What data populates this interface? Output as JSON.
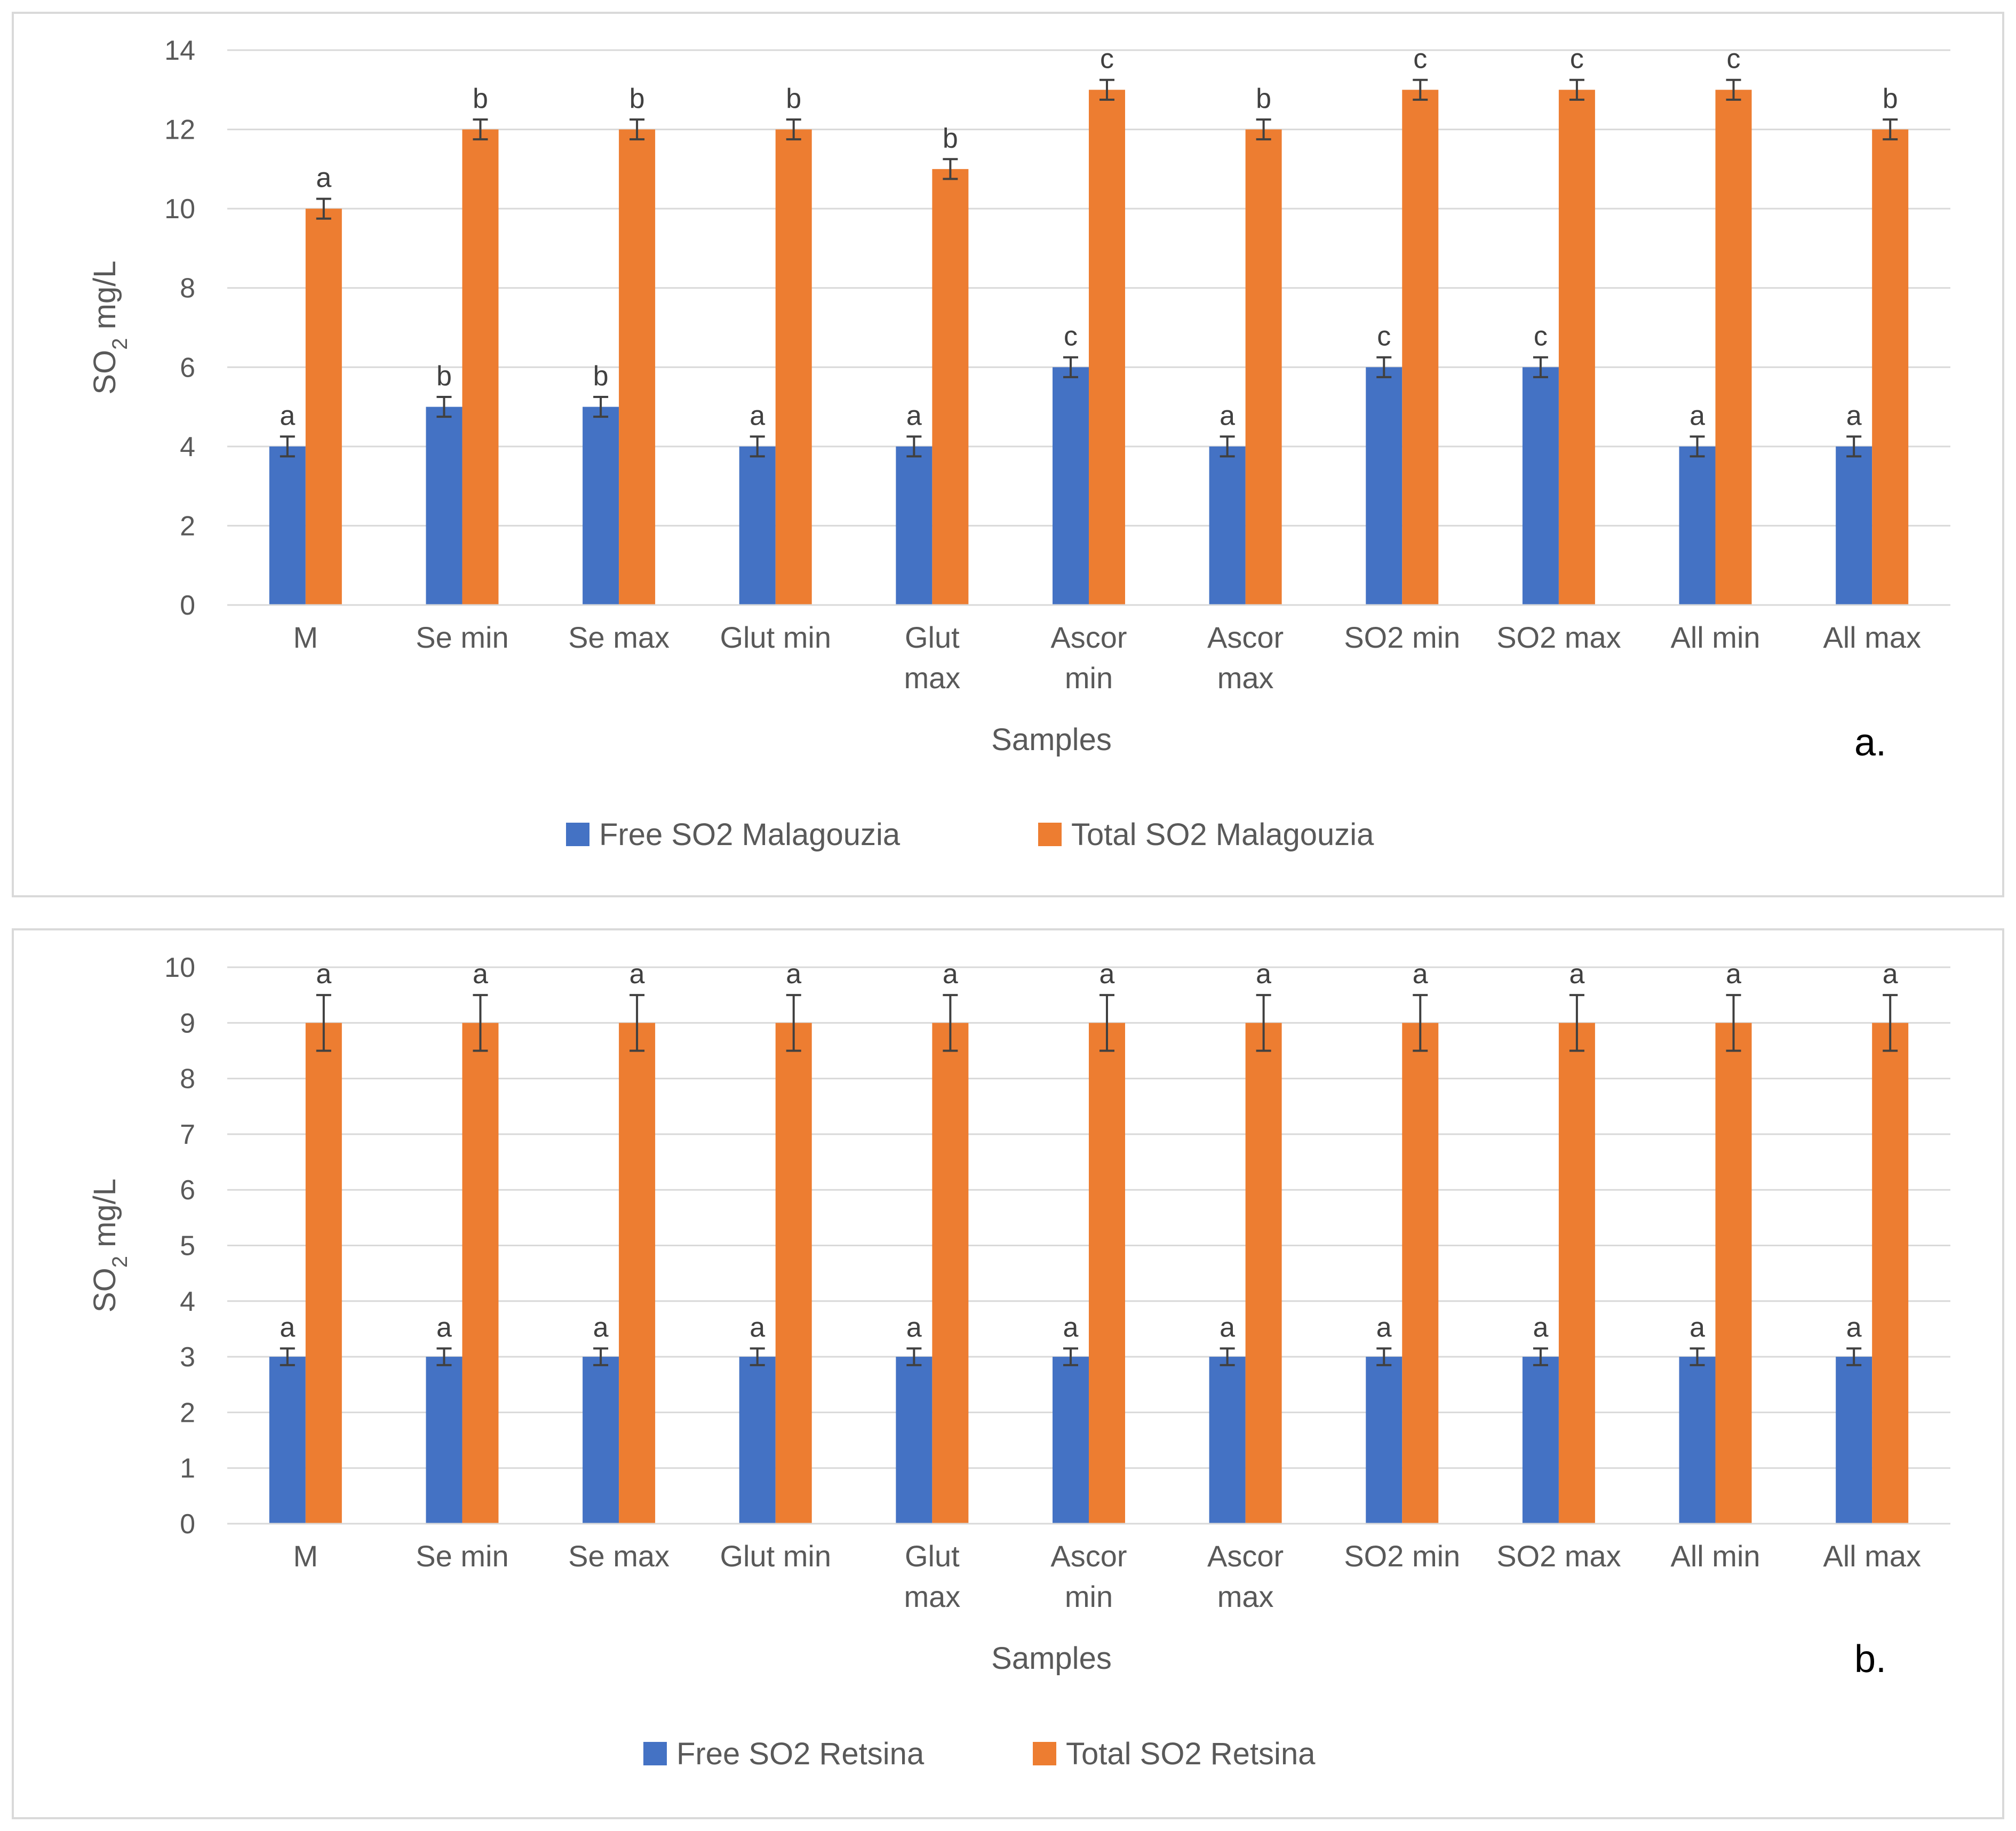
{
  "figure": {
    "colors": {
      "free": "#4472C4",
      "total": "#ED7D31",
      "grid": "#d9d9d9",
      "text": "#595959",
      "errbar": "#404040"
    }
  },
  "chart_data": [
    {
      "type": "bar",
      "panel_label": "a.",
      "xlabel": "Samples",
      "ylabel": "SO2 mg/L",
      "ylabel_main": "SO",
      "ylabel_sub": "2",
      "ylabel_unit": " mg/L",
      "ylim": [
        0,
        14
      ],
      "yticks": [
        0,
        2,
        4,
        6,
        8,
        10,
        12,
        14
      ],
      "grid": true,
      "legend_position": "bottom",
      "categories": [
        [
          "M"
        ],
        [
          "Se min"
        ],
        [
          "Se max"
        ],
        [
          "Glut min"
        ],
        [
          "Glut",
          "max"
        ],
        [
          "Ascor",
          "min"
        ],
        [
          "Ascor",
          "max"
        ],
        [
          "SO2 min"
        ],
        [
          "SO2 max"
        ],
        [
          "All min"
        ],
        [
          "All max"
        ]
      ],
      "series": [
        {
          "name": "Free SO2 Malagouzia",
          "values": [
            4,
            5,
            5,
            4,
            4,
            6,
            4,
            6,
            6,
            4,
            4
          ],
          "error": [
            0.25,
            0.25,
            0.25,
            0.25,
            0.25,
            0.25,
            0.25,
            0.25,
            0.25,
            0.25,
            0.25
          ],
          "labels": [
            "a",
            "b",
            "b",
            "a",
            "a",
            "c",
            "a",
            "c",
            "c",
            "a",
            "a"
          ]
        },
        {
          "name": "Total SO2 Malagouzia",
          "values": [
            10,
            12,
            12,
            12,
            11,
            13,
            12,
            13,
            13,
            13,
            12
          ],
          "error": [
            0.25,
            0.25,
            0.25,
            0.25,
            0.25,
            0.25,
            0.25,
            0.25,
            0.25,
            0.25,
            0.25
          ],
          "labels": [
            "a",
            "b",
            "b",
            "b",
            "b",
            "c",
            "b",
            "c",
            "c",
            "c",
            "b"
          ]
        }
      ]
    },
    {
      "type": "bar",
      "panel_label": "b.",
      "xlabel": "Samples",
      "ylabel": "SO2 mg/L",
      "ylabel_main": "SO",
      "ylabel_sub": "2",
      "ylabel_unit": " mg/L",
      "ylim": [
        0,
        10
      ],
      "yticks": [
        0,
        1,
        2,
        3,
        4,
        5,
        6,
        7,
        8,
        9,
        10
      ],
      "grid": true,
      "legend_position": "bottom",
      "categories": [
        [
          "M"
        ],
        [
          "Se min"
        ],
        [
          "Se max"
        ],
        [
          "Glut min"
        ],
        [
          "Glut",
          "max"
        ],
        [
          "Ascor",
          "min"
        ],
        [
          "Ascor",
          "max"
        ],
        [
          "SO2 min"
        ],
        [
          "SO2 max"
        ],
        [
          "All min"
        ],
        [
          "All max"
        ]
      ],
      "series": [
        {
          "name": "Free SO2 Retsina",
          "values": [
            3,
            3,
            3,
            3,
            3,
            3,
            3,
            3,
            3,
            3,
            3
          ],
          "error": [
            0.15,
            0.15,
            0.15,
            0.15,
            0.15,
            0.15,
            0.15,
            0.15,
            0.15,
            0.15,
            0.15
          ],
          "labels": [
            "a",
            "a",
            "a",
            "a",
            "a",
            "a",
            "a",
            "a",
            "a",
            "a",
            "a"
          ]
        },
        {
          "name": "Total SO2 Retsina",
          "values": [
            9,
            9,
            9,
            9,
            9,
            9,
            9,
            9,
            9,
            9,
            9
          ],
          "error": [
            0.5,
            0.5,
            0.5,
            0.5,
            0.5,
            0.5,
            0.5,
            0.5,
            0.5,
            0.5,
            0.5
          ],
          "labels": [
            "a",
            "a",
            "a",
            "a",
            "a",
            "a",
            "a",
            "a",
            "a",
            "a",
            "a"
          ]
        }
      ]
    }
  ]
}
